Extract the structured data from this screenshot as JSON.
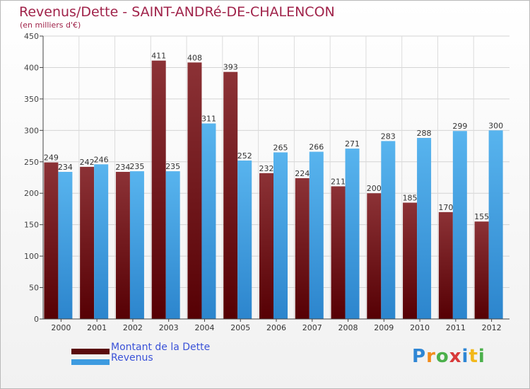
{
  "header": {
    "title": "Revenus/Dette - SAINT-ANDRé-DE-CHALENCON",
    "subtitle": "(en milliers d'€)"
  },
  "colors": {
    "dette": "#7a1a1f",
    "revenus": "#49a8e6",
    "title": "#a0234a",
    "legend_text": "#3a52d8"
  },
  "legend": {
    "items": [
      {
        "label": "Montant de la Dette",
        "color": "#5a0a0e"
      },
      {
        "label": "Revenus",
        "color": "#3d9be0"
      }
    ]
  },
  "logo": {
    "text": "Proxiti",
    "letter_colors": [
      "#2e86d4",
      "#f28c1b",
      "#4bb04b",
      "#d83a3a",
      "#2e86d4",
      "#f2b81b",
      "#4bb04b"
    ]
  },
  "chart_data": {
    "type": "bar",
    "categories": [
      "2000",
      "2001",
      "2002",
      "2003",
      "2004",
      "2005",
      "2006",
      "2007",
      "2008",
      "2009",
      "2010",
      "2011",
      "2012"
    ],
    "series": [
      {
        "name": "Montant de la Dette",
        "values": [
          249,
          242,
          234,
          411,
          408,
          393,
          232,
          224,
          211,
          200,
          185,
          170,
          155
        ]
      },
      {
        "name": "Revenus",
        "values": [
          234,
          246,
          235,
          235,
          311,
          252,
          265,
          266,
          271,
          283,
          288,
          299,
          300
        ]
      }
    ],
    "ylim": [
      0,
      450
    ],
    "yticks": [
      0,
      50,
      100,
      150,
      200,
      250,
      300,
      350,
      400,
      450
    ],
    "grid": true,
    "legend_position": "bottom-left"
  }
}
